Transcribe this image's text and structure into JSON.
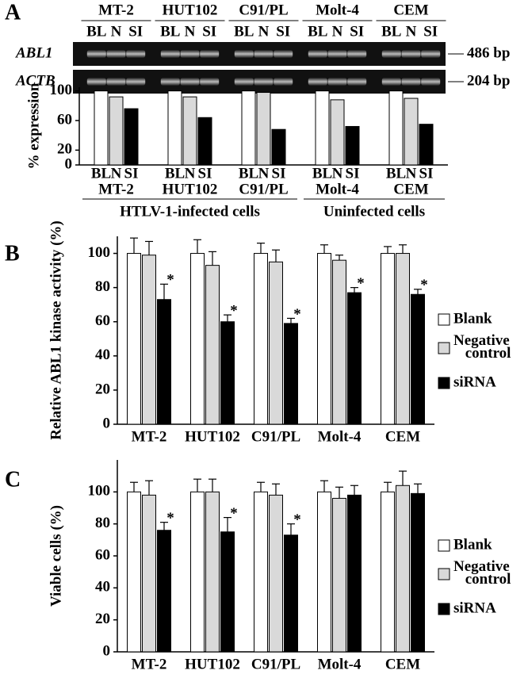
{
  "panels": [
    "A",
    "B",
    "C"
  ],
  "gel": {
    "rows": [
      {
        "label": "ABL1",
        "size": "486 bp"
      },
      {
        "label": "ACTB",
        "size": "204 bp"
      }
    ]
  },
  "chart_data": [
    {
      "type": "bar",
      "ylabel": "% expression",
      "categories": [
        "MT-2",
        "HUT102",
        "C91/PL",
        "Molt-4",
        "CEM"
      ],
      "group_labels": [
        "HTLV-1-infected cells",
        "Uninfected cells"
      ],
      "series": [
        {
          "name": "BL",
          "color": "#ffffff",
          "values": [
            100,
            100,
            100,
            100,
            100
          ]
        },
        {
          "name": "N",
          "color": "#d9d9d9",
          "values": [
            92,
            92,
            98,
            88,
            90
          ]
        },
        {
          "name": "SI",
          "color": "#000000",
          "values": [
            76,
            64,
            48,
            52,
            55
          ]
        }
      ],
      "ylim": [
        0,
        105
      ],
      "yticks": [
        0,
        20,
        60,
        100
      ],
      "legend": false
    },
    {
      "type": "bar",
      "ylabel": "Relative ABL1 kinase activity (%)",
      "categories": [
        "MT-2",
        "HUT102",
        "C91/PL",
        "Molt-4",
        "CEM"
      ],
      "series": [
        {
          "name": "Blank",
          "color": "#ffffff",
          "values": [
            100,
            100,
            100,
            100,
            100
          ],
          "errors": [
            9,
            8,
            6,
            5,
            4
          ]
        },
        {
          "name": "Negative control",
          "color": "#d9d9d9",
          "values": [
            99,
            93,
            95,
            96,
            100
          ],
          "errors": [
            8,
            8,
            7,
            3,
            5
          ]
        },
        {
          "name": "siRNA",
          "color": "#000000",
          "values": [
            73,
            60,
            59,
            77,
            76
          ],
          "errors": [
            9,
            4,
            3,
            3,
            3
          ],
          "markers": [
            "*",
            "*",
            "*",
            "*",
            "*"
          ]
        }
      ],
      "ylim": [
        0,
        110
      ],
      "yticks": [
        0,
        20,
        40,
        60,
        80,
        100
      ],
      "legend": "right"
    },
    {
      "type": "bar",
      "ylabel": "Viable cells (%)",
      "categories": [
        "MT-2",
        "HUT102",
        "C91/PL",
        "Molt-4",
        "CEM"
      ],
      "series": [
        {
          "name": "Blank",
          "color": "#ffffff",
          "values": [
            100,
            100,
            100,
            100,
            100
          ],
          "errors": [
            6,
            8,
            6,
            7,
            6
          ]
        },
        {
          "name": "Negative control",
          "color": "#d9d9d9",
          "values": [
            98,
            100,
            98,
            96,
            104
          ],
          "errors": [
            9,
            8,
            7,
            7,
            9
          ]
        },
        {
          "name": "siRNA",
          "color": "#000000",
          "values": [
            76,
            75,
            73,
            98,
            99
          ],
          "errors": [
            5,
            9,
            7,
            6,
            6
          ],
          "markers": [
            "*",
            "*",
            "*",
            null,
            null
          ]
        }
      ],
      "ylim": [
        0,
        120
      ],
      "yticks": [
        0,
        20,
        40,
        60,
        80,
        100
      ],
      "legend": "right"
    }
  ]
}
